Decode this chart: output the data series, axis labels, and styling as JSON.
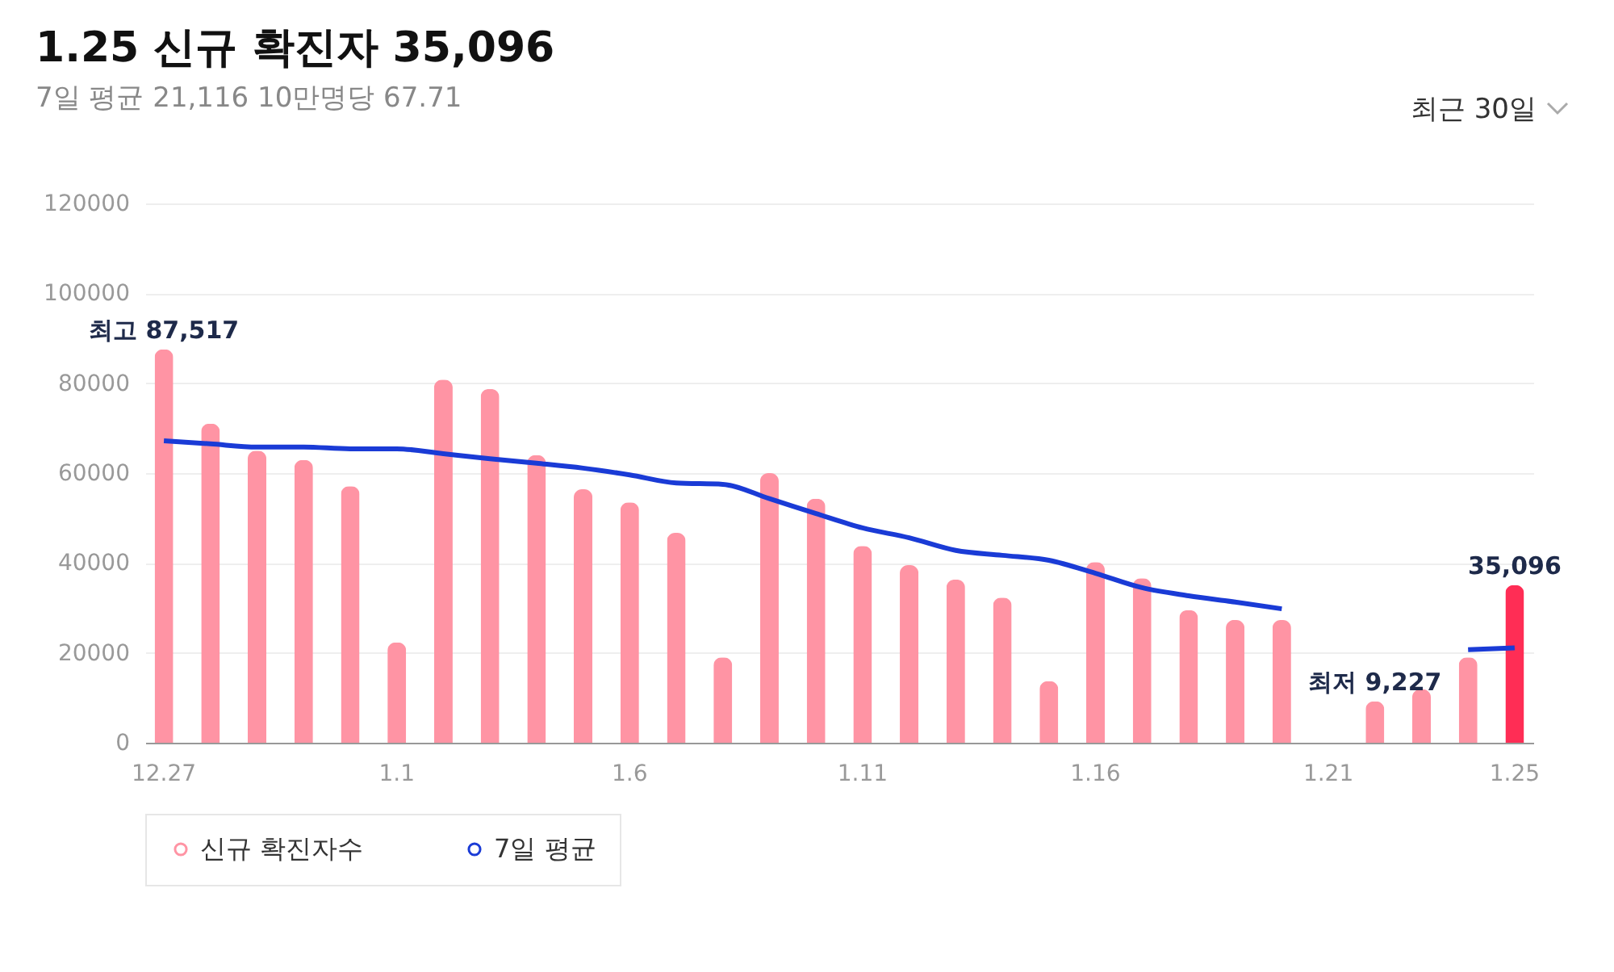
{
  "chart_data": {
    "type": "bar",
    "title": "1.25 신규 확진자 35,096",
    "subtitle": "7일 평균 21,116  10만명당 67.71",
    "categories": [
      "12.27",
      null,
      null,
      null,
      null,
      "1.1",
      null,
      null,
      null,
      null,
      "1.6",
      null,
      null,
      null,
      null,
      "1.11",
      null,
      null,
      null,
      null,
      "1.16",
      null,
      null,
      null,
      null,
      "1.21",
      null,
      null,
      null,
      "1.25"
    ],
    "series": [
      {
        "name": "신규 확진자수",
        "color": "#ff94a4",
        "colors": [
          "#ff94a4",
          "#ff94a4",
          "#ff94a4",
          "#ff94a4",
          "#ff94a4",
          "#ff94a4",
          "#ff94a4",
          "#ff94a4",
          "#ff94a4",
          "#ff94a4",
          "#ff94a4",
          "#ff94a4",
          "#ff94a4",
          "#ff94a4",
          "#ff94a4",
          "#ff94a4",
          "#ff94a4",
          "#ff94a4",
          "#ff94a4",
          "#ff94a4",
          "#ff94a4",
          "#ff94a4",
          "#ff94a4",
          "#ff94a4",
          "#ff94a4",
          "#ff94a4",
          "#ff94a4",
          "#ff94a4",
          "#ff94a4",
          "#ff2d55"
        ],
        "values": [
          87517,
          71000,
          65000,
          62900,
          57100,
          22300,
          80800,
          78700,
          64000,
          56400,
          53500,
          46700,
          19000,
          60000,
          54300,
          43800,
          39500,
          36300,
          32300,
          13700,
          40200,
          36600,
          29500,
          27300,
          27300,
          null,
          9227,
          11900,
          19000,
          35096
        ],
        "value_labels": [
          "최고 87,517",
          null,
          null,
          null,
          null,
          null,
          null,
          null,
          null,
          null,
          null,
          null,
          null,
          null,
          null,
          null,
          null,
          null,
          null,
          null,
          null,
          null,
          null,
          null,
          null,
          null,
          "최저 9,227",
          null,
          null,
          "35,096"
        ]
      },
      {
        "name": "7일 평균",
        "type": "line",
        "color": "#1a3bd6",
        "values": [
          67200,
          66500,
          65800,
          65800,
          65400,
          65400,
          64300,
          63200,
          62200,
          61100,
          59600,
          57800,
          57500,
          54300,
          51000,
          47800,
          45600,
          42800,
          41700,
          40600,
          37700,
          34500,
          32700,
          31300,
          29800,
          null,
          null,
          null,
          20700,
          21116
        ]
      }
    ],
    "ylim": [
      0,
      120000
    ],
    "yticks": [
      0,
      20000,
      40000,
      60000,
      80000,
      100000,
      120000
    ],
    "grid": "y",
    "legend": "bottom",
    "annotations": [
      "최근 30일"
    ]
  }
}
